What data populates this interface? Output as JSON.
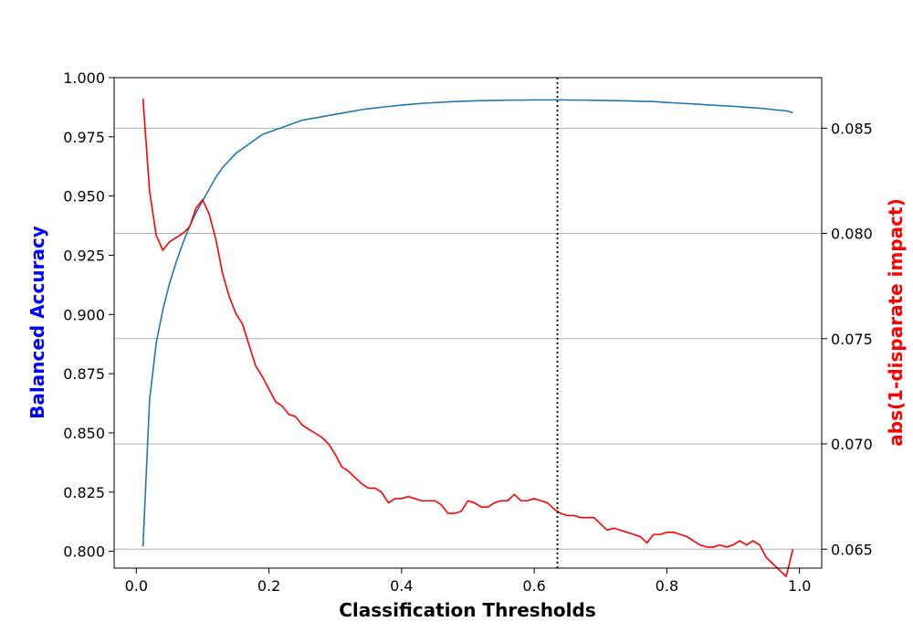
{
  "chart_data": {
    "type": "line",
    "title": "",
    "xlabel": "Classification Thresholds",
    "ylabel_left": "Balanced Accuracy",
    "ylabel_right": "abs(1-disparate impact)",
    "xlim": [
      -0.0335,
      1.0335
    ],
    "ylim_left": [
      0.7929,
      1.0
    ],
    "ylim_right": [
      0.0641,
      0.0874
    ],
    "x_ticks": [
      0.0,
      0.2,
      0.4,
      0.6,
      0.8,
      1.0
    ],
    "x_tick_labels": [
      "0.0",
      "0.2",
      "0.4",
      "0.6",
      "0.8",
      "1.0"
    ],
    "y_left_ticks": [
      0.8,
      0.825,
      0.85,
      0.875,
      0.9,
      0.925,
      0.95,
      0.975,
      1.0
    ],
    "y_left_tick_labels": [
      "0.800",
      "0.825",
      "0.850",
      "0.875",
      "0.900",
      "0.925",
      "0.950",
      "0.975",
      "1.000"
    ],
    "y_right_ticks": [
      0.065,
      0.07,
      0.075,
      0.08,
      0.085
    ],
    "y_right_tick_labels": [
      "0.065",
      "0.070",
      "0.075",
      "0.080",
      "0.085"
    ],
    "grid": "horizontal gridlines at right-axis ticks",
    "threshold_marker": 0.635,
    "colors": {
      "accuracy": "#1f77b4",
      "disparate_impact": "#ff0000",
      "left_label": "#0000ff",
      "right_label": "#ff0000",
      "marker": "#000000",
      "grid": "#b0b0b0"
    },
    "series": [
      {
        "axis": "left",
        "x": [
          0.01,
          0.02,
          0.03,
          0.04,
          0.05,
          0.06,
          0.07,
          0.08,
          0.09,
          0.1,
          0.11,
          0.12,
          0.13,
          0.14,
          0.15,
          0.16,
          0.17,
          0.18,
          0.19,
          0.2,
          0.21,
          0.22,
          0.23,
          0.24,
          0.25,
          0.26,
          0.27,
          0.28,
          0.29,
          0.3,
          0.32,
          0.34,
          0.36,
          0.38,
          0.4,
          0.42,
          0.44,
          0.46,
          0.48,
          0.5,
          0.52,
          0.54,
          0.56,
          0.58,
          0.6,
          0.62,
          0.64,
          0.66,
          0.68,
          0.7,
          0.72,
          0.74,
          0.76,
          0.78,
          0.8,
          0.82,
          0.84,
          0.86,
          0.88,
          0.9,
          0.92,
          0.94,
          0.96,
          0.98,
          0.99
        ],
        "y": [
          0.802,
          0.864,
          0.888,
          0.902,
          0.913,
          0.922,
          0.93,
          0.937,
          0.943,
          0.948,
          0.953,
          0.958,
          0.962,
          0.965,
          0.968,
          0.97,
          0.972,
          0.974,
          0.976,
          0.977,
          0.978,
          0.979,
          0.98,
          0.981,
          0.982,
          0.9825,
          0.983,
          0.9835,
          0.984,
          0.9845,
          0.9855,
          0.9865,
          0.9872,
          0.9878,
          0.9884,
          0.9889,
          0.9893,
          0.9896,
          0.9899,
          0.9901,
          0.9903,
          0.9904,
          0.9905,
          0.9905,
          0.9906,
          0.9906,
          0.9906,
          0.9905,
          0.9905,
          0.9904,
          0.9903,
          0.9902,
          0.99,
          0.9899,
          0.9895,
          0.9892,
          0.9889,
          0.9885,
          0.9882,
          0.9879,
          0.9875,
          0.9871,
          0.9865,
          0.986,
          0.9852
        ]
      },
      {
        "axis": "right",
        "x": [
          0.01,
          0.02,
          0.03,
          0.04,
          0.05,
          0.06,
          0.07,
          0.08,
          0.09,
          0.1,
          0.11,
          0.12,
          0.13,
          0.14,
          0.15,
          0.16,
          0.17,
          0.18,
          0.19,
          0.2,
          0.21,
          0.22,
          0.23,
          0.24,
          0.25,
          0.26,
          0.27,
          0.28,
          0.29,
          0.3,
          0.31,
          0.32,
          0.33,
          0.34,
          0.35,
          0.36,
          0.37,
          0.38,
          0.39,
          0.4,
          0.41,
          0.42,
          0.43,
          0.44,
          0.45,
          0.46,
          0.47,
          0.48,
          0.49,
          0.5,
          0.51,
          0.52,
          0.53,
          0.54,
          0.55,
          0.56,
          0.57,
          0.58,
          0.59,
          0.6,
          0.61,
          0.62,
          0.63,
          0.64,
          0.65,
          0.66,
          0.67,
          0.68,
          0.69,
          0.7,
          0.71,
          0.72,
          0.73,
          0.74,
          0.75,
          0.76,
          0.77,
          0.78,
          0.79,
          0.8,
          0.81,
          0.82,
          0.83,
          0.84,
          0.85,
          0.86,
          0.87,
          0.88,
          0.89,
          0.9,
          0.91,
          0.92,
          0.93,
          0.94,
          0.95,
          0.96,
          0.97,
          0.98,
          0.99
        ],
        "y": [
          0.0864,
          0.082,
          0.0799,
          0.0792,
          0.0796,
          0.0798,
          0.08,
          0.0803,
          0.0812,
          0.0816,
          0.0809,
          0.0797,
          0.0781,
          0.077,
          0.0762,
          0.0757,
          0.0747,
          0.0737,
          0.0732,
          0.0726,
          0.072,
          0.0718,
          0.0714,
          0.0713,
          0.0709,
          0.0707,
          0.0705,
          0.0703,
          0.07,
          0.0695,
          0.0689,
          0.0687,
          0.0684,
          0.0681,
          0.0679,
          0.0679,
          0.0677,
          0.0672,
          0.0674,
          0.0674,
          0.0675,
          0.0674,
          0.0673,
          0.0673,
          0.0673,
          0.0671,
          0.0667,
          0.0667,
          0.0668,
          0.0673,
          0.0672,
          0.067,
          0.067,
          0.0672,
          0.0673,
          0.0673,
          0.0676,
          0.0673,
          0.0673,
          0.0674,
          0.0673,
          0.0672,
          0.0669,
          0.0667,
          0.0666,
          0.0666,
          0.0665,
          0.0665,
          0.0665,
          0.0662,
          0.0659,
          0.066,
          0.0659,
          0.0658,
          0.0657,
          0.0656,
          0.0653,
          0.0657,
          0.0657,
          0.0658,
          0.0658,
          0.0657,
          0.0656,
          0.0654,
          0.0652,
          0.0651,
          0.0651,
          0.0652,
          0.0651,
          0.0652,
          0.0654,
          0.0652,
          0.0654,
          0.0652,
          0.0646,
          0.0643,
          0.064,
          0.0637,
          0.065
        ]
      }
    ]
  }
}
